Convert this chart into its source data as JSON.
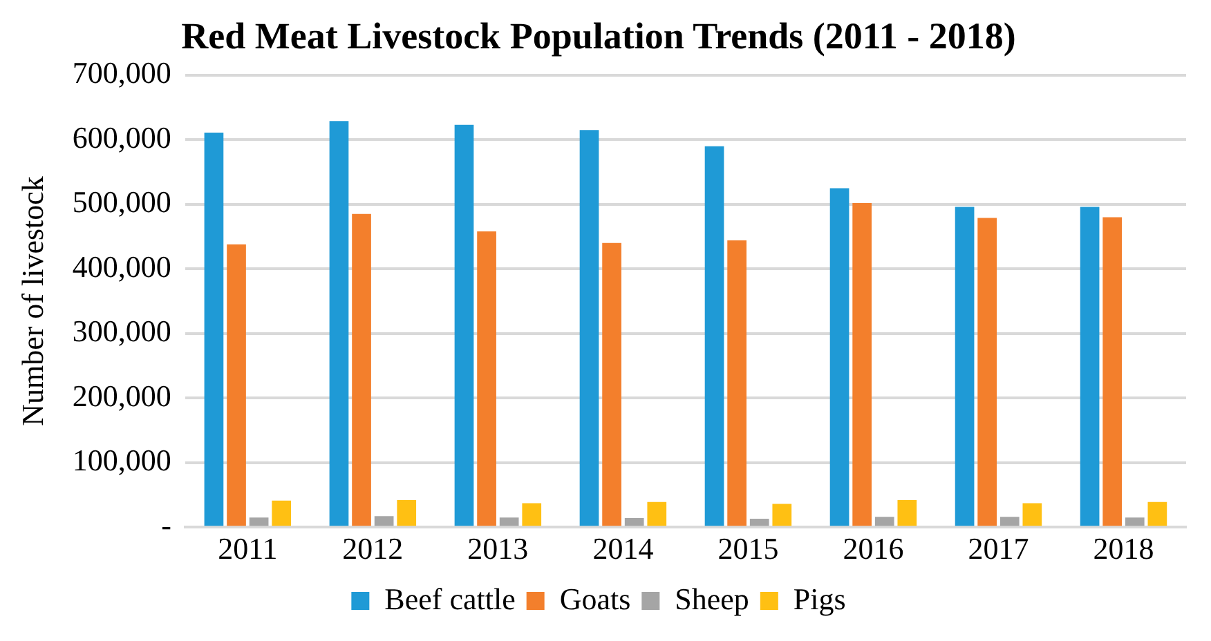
{
  "chart_data": {
    "type": "bar",
    "title": "Red Meat Livestock Population Trends (2011 - 2018)",
    "ylabel": "Number of livestock",
    "categories": [
      "2011",
      "2012",
      "2013",
      "2014",
      "2015",
      "2016",
      "2017",
      "2018"
    ],
    "series": [
      {
        "name": "Beef cattle",
        "color": "#1f9ad6",
        "values": [
          611000,
          629000,
          623000,
          615000,
          590000,
          525000,
          496000,
          496000
        ]
      },
      {
        "name": "Goats",
        "color": "#f37f2c",
        "values": [
          438000,
          485000,
          458000,
          440000,
          444000,
          502000,
          479000,
          480000
        ]
      },
      {
        "name": "Sheep",
        "color": "#a5a5a5",
        "values": [
          15000,
          17000,
          15000,
          14000,
          13000,
          16000,
          16000,
          15000
        ]
      },
      {
        "name": "Pigs",
        "color": "#ffc013",
        "values": [
          41000,
          42000,
          37000,
          39000,
          36000,
          42000,
          37000,
          39000
        ]
      }
    ],
    "ylim": [
      0,
      700000
    ],
    "yticks": [
      {
        "value": 0,
        "label": "-"
      },
      {
        "value": 100000,
        "label": "100,000"
      },
      {
        "value": 200000,
        "label": "200,000"
      },
      {
        "value": 300000,
        "label": "300,000"
      },
      {
        "value": 400000,
        "label": "400,000"
      },
      {
        "value": 500000,
        "label": "500,000"
      },
      {
        "value": 600000,
        "label": "600,000"
      },
      {
        "value": 700000,
        "label": "700,000"
      }
    ],
    "grid": "y",
    "legend": "bottom"
  }
}
